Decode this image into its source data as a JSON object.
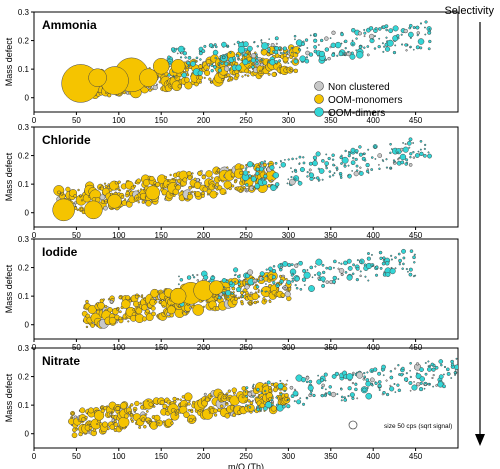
{
  "selectivity_label": "Selectivity",
  "legend": {
    "items": [
      {
        "label": "Non clustered",
        "color": "#c8c8c8"
      },
      {
        "label": "OOM-monomers",
        "color": "#f5c400"
      },
      {
        "label": "OOM-dimers",
        "color": "#33d6d6"
      }
    ],
    "size_note": "size 50 cps (sqrt signal)"
  },
  "colors": {
    "non_clustered": "#c8c8c8",
    "monomer": "#f5c400",
    "dimer": "#33d6d6",
    "stroke": "#444444"
  },
  "chart_data": [
    {
      "type": "scatter",
      "panel_label": "Ammonia",
      "ylabel": "Mass defect",
      "xlabel": "",
      "xlim": [
        0,
        500
      ],
      "ylim": [
        -0.05,
        0.3
      ],
      "x_ticks": [
        0,
        50,
        100,
        150,
        200,
        250,
        300,
        350,
        400,
        450
      ],
      "y_ticks": [
        0,
        0.1,
        0.2,
        0.3
      ],
      "monomer_range": [
        50,
        310
      ],
      "dimer_range": [
        160,
        470
      ],
      "large_points": [
        {
          "x": 55,
          "y": 0.05,
          "s": 19
        },
        {
          "x": 115,
          "y": 0.08,
          "s": 17
        },
        {
          "x": 95,
          "y": 0.06,
          "s": 14
        },
        {
          "x": 75,
          "y": 0.07,
          "s": 9
        },
        {
          "x": 135,
          "y": 0.07,
          "s": 9
        },
        {
          "x": 150,
          "y": 0.11,
          "s": 8
        },
        {
          "x": 170,
          "y": 0.11,
          "s": 7
        }
      ]
    },
    {
      "type": "scatter",
      "panel_label": "Chloride",
      "ylabel": "Mass defect",
      "xlabel": "",
      "xlim": [
        0,
        500
      ],
      "ylim": [
        -0.05,
        0.3
      ],
      "x_ticks": [
        0,
        50,
        100,
        150,
        200,
        250,
        300,
        350,
        400,
        450
      ],
      "y_ticks": [
        0,
        0.1,
        0.2,
        0.3
      ],
      "monomer_range": [
        30,
        280
      ],
      "dimer_range": [
        250,
        470
      ],
      "large_points": [
        {
          "x": 35,
          "y": 0.01,
          "s": 11
        },
        {
          "x": 70,
          "y": 0.01,
          "s": 9
        },
        {
          "x": 95,
          "y": 0.04,
          "s": 7
        },
        {
          "x": 140,
          "y": 0.07,
          "s": 7
        }
      ]
    },
    {
      "type": "scatter",
      "panel_label": "Iodide",
      "ylabel": "Mass defect",
      "xlabel": "",
      "xlim": [
        0,
        500
      ],
      "ylim": [
        -0.05,
        0.3
      ],
      "x_ticks": [
        0,
        50,
        100,
        150,
        200,
        250,
        300,
        350,
        400,
        450
      ],
      "y_ticks": [
        0,
        0.1,
        0.2,
        0.3
      ],
      "monomer_range": [
        60,
        300
      ],
      "dimer_range": [
        170,
        450
      ],
      "large_points": [
        {
          "x": 185,
          "y": 0.11,
          "s": 11
        },
        {
          "x": 200,
          "y": 0.12,
          "s": 10
        },
        {
          "x": 170,
          "y": 0.1,
          "s": 8
        },
        {
          "x": 215,
          "y": 0.13,
          "s": 7
        }
      ]
    },
    {
      "type": "scatter",
      "panel_label": "Nitrate",
      "ylabel": "Mass defect",
      "xlabel": "m/Q (Th)",
      "xlim": [
        0,
        500
      ],
      "ylim": [
        -0.05,
        0.3
      ],
      "x_ticks": [
        0,
        50,
        100,
        150,
        200,
        250,
        300,
        350,
        400,
        450
      ],
      "y_ticks": [
        0,
        0.1,
        0.2,
        0.3
      ],
      "monomer_range": [
        45,
        300
      ],
      "dimer_range": [
        250,
        500
      ],
      "large_points": []
    }
  ]
}
